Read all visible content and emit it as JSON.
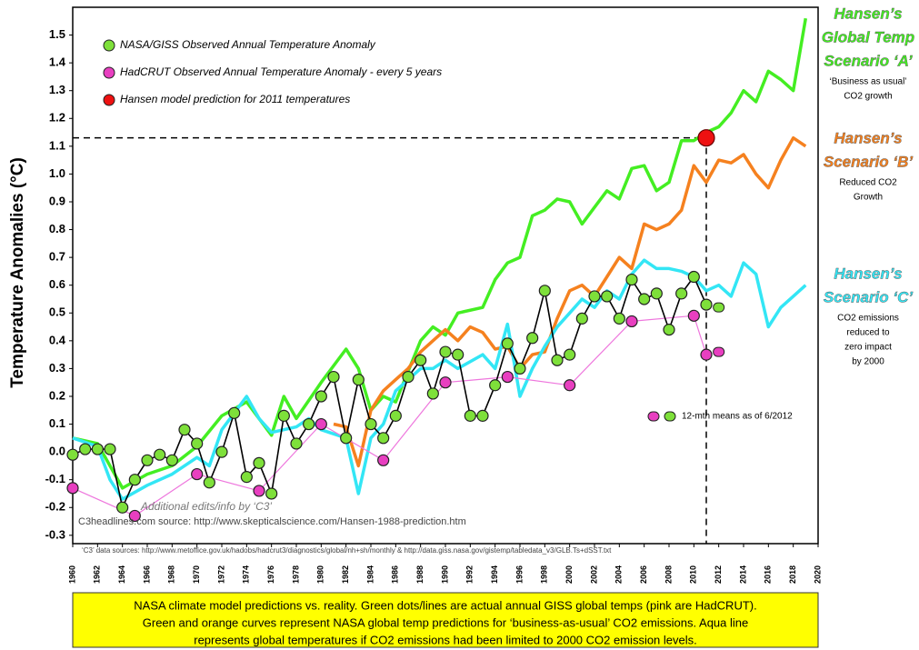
{
  "chart_data": {
    "type": "line",
    "y_label": "Temperature Anomalies (°C)",
    "xlim": [
      1960,
      2020
    ],
    "xticks": [
      1960,
      1962,
      1964,
      1966,
      1968,
      1970,
      1972,
      1974,
      1976,
      1978,
      1980,
      1982,
      1984,
      1986,
      1988,
      1990,
      1992,
      1994,
      1996,
      1998,
      2000,
      2002,
      2004,
      2006,
      2008,
      2010,
      2012,
      2014,
      2016,
      2018,
      2020
    ],
    "ylim": [
      -0.33,
      1.6
    ],
    "yticks": [
      -0.3,
      -0.2,
      -0.1,
      {
        "value": 0,
        "label": "0.0"
      },
      0.1,
      0.2,
      0.3,
      0.4,
      0.5,
      0.6,
      0.7,
      0.8,
      0.9,
      {
        "value": 1,
        "label": "1.0"
      },
      1.1,
      1.2,
      1.3,
      1.4,
      1.5
    ],
    "series": [
      {
        "label_lines": [
          "Hansen’s",
          "Global Temp",
          "Scenario ‘A’"
        ],
        "note_lines": [
          "‘Business as usual’",
          "CO2 growth"
        ],
        "color": "#44ee22",
        "marker": false,
        "x": [
          1960,
          1962,
          1964,
          1966,
          1968,
          1970,
          1972,
          1974,
          1975,
          1976,
          1977,
          1978,
          1980,
          1982,
          1983,
          1984,
          1985,
          1986,
          1988,
          1989,
          1990,
          1991,
          1993,
          1994,
          1995,
          1996,
          1997,
          1998,
          1999,
          2000,
          2001,
          2002,
          2003,
          2004,
          2005,
          2006,
          2007,
          2008,
          2009,
          2010,
          2011,
          2012,
          2013,
          2014,
          2015,
          2016,
          2017,
          2018,
          2019
        ],
        "values": [
          0.05,
          0.03,
          -0.13,
          -0.08,
          -0.05,
          0.02,
          0.13,
          0.18,
          0.12,
          0.06,
          0.2,
          0.12,
          0.25,
          0.37,
          0.3,
          0.15,
          0.2,
          0.18,
          0.4,
          0.45,
          0.42,
          0.5,
          0.52,
          0.62,
          0.68,
          0.7,
          0.85,
          0.87,
          0.91,
          0.9,
          0.82,
          0.88,
          0.94,
          0.91,
          1.02,
          1.03,
          0.94,
          0.97,
          1.12,
          1.12,
          1.15,
          1.17,
          1.22,
          1.3,
          1.26,
          1.37,
          1.34,
          1.3,
          1.56
        ]
      },
      {
        "label_lines": [
          "Hansen’s",
          "Scenario ‘B’"
        ],
        "note_lines": [
          "Reduced CO2",
          "Growth"
        ],
        "color": "#f5811f",
        "marker": false,
        "x": [
          1981,
          1982,
          1983,
          1984,
          1985,
          1986,
          1987,
          1988,
          1989,
          1990,
          1991,
          1992,
          1993,
          1994,
          1995,
          1996,
          1997,
          1998,
          1999,
          2000,
          2001,
          2002,
          2003,
          2004,
          2005,
          2006,
          2007,
          2008,
          2009,
          2010,
          2011,
          2012,
          2013,
          2014,
          2015,
          2016,
          2017,
          2018,
          2019
        ],
        "values": [
          0.1,
          0.09,
          -0.05,
          0.15,
          0.22,
          0.26,
          0.3,
          0.36,
          0.4,
          0.44,
          0.4,
          0.45,
          0.43,
          0.37,
          0.38,
          0.3,
          0.35,
          0.36,
          0.48,
          0.58,
          0.6,
          0.56,
          0.63,
          0.7,
          0.66,
          0.82,
          0.8,
          0.82,
          0.87,
          1.03,
          0.97,
          1.05,
          1.04,
          1.07,
          1.0,
          0.95,
          1.05,
          1.13,
          1.1
        ]
      },
      {
        "label_lines": [
          "Hansen’s",
          "Scenario ‘C’"
        ],
        "note_lines": [
          "CO2 emissions",
          "reduced to",
          "zero impact",
          "by 2000"
        ],
        "color": "#33e6f5",
        "marker": false,
        "x": [
          1960,
          1962,
          1963,
          1964,
          1966,
          1968,
          1970,
          1971,
          1972,
          1974,
          1975,
          1976,
          1978,
          1979,
          1980,
          1982,
          1983,
          1984,
          1985,
          1986,
          1988,
          1989,
          1990,
          1991,
          1993,
          1994,
          1995,
          1996,
          1997,
          1998,
          1999,
          2000,
          2001,
          2002,
          2003,
          2004,
          2005,
          2006,
          2007,
          2008,
          2009,
          2010,
          2011,
          2012,
          2013,
          2014,
          2015,
          2016,
          2017,
          2018,
          2019
        ],
        "values": [
          0.05,
          0.02,
          -0.1,
          -0.17,
          -0.12,
          -0.08,
          -0.02,
          -0.05,
          0.08,
          0.2,
          0.12,
          0.07,
          0.09,
          0.12,
          0.08,
          0.05,
          -0.15,
          0.05,
          0.1,
          0.22,
          0.3,
          0.3,
          0.33,
          0.3,
          0.35,
          0.3,
          0.46,
          0.2,
          0.3,
          0.38,
          0.45,
          0.5,
          0.55,
          0.52,
          0.58,
          0.55,
          0.64,
          0.69,
          0.66,
          0.66,
          0.65,
          0.63,
          0.58,
          0.6,
          0.56,
          0.68,
          0.64,
          0.45,
          0.52,
          0.56,
          0.6
        ]
      },
      {
        "name": "HadCRUT Observed Annual Temperature Anomaly - every 5 years",
        "color": "#e83fc0",
        "line_color": "#ee77dd",
        "marker": true,
        "x": [
          1960,
          1965,
          1970,
          1975,
          1980,
          1985,
          1990,
          1995,
          2000,
          2005,
          2010,
          2011
        ],
        "values": [
          -0.13,
          -0.23,
          -0.08,
          -0.14,
          0.1,
          -0.03,
          0.25,
          0.27,
          0.24,
          0.47,
          0.49,
          0.35
        ]
      },
      {
        "name": "NASA/GISS Observed Annual Temperature Anomaly",
        "color": "#7ee03a",
        "line_color": "#000000",
        "marker": true,
        "x": [
          1960,
          1961,
          1962,
          1963,
          1964,
          1965,
          1966,
          1967,
          1968,
          1969,
          1970,
          1971,
          1972,
          1973,
          1974,
          1975,
          1976,
          1977,
          1978,
          1979,
          1980,
          1981,
          1982,
          1983,
          1984,
          1985,
          1986,
          1987,
          1988,
          1989,
          1990,
          1991,
          1992,
          1993,
          1994,
          1995,
          1996,
          1997,
          1998,
          1999,
          2000,
          2001,
          2002,
          2003,
          2004,
          2005,
          2006,
          2007,
          2008,
          2009,
          2010,
          2011
        ],
        "values": [
          -0.01,
          0.01,
          0.01,
          0.01,
          -0.2,
          -0.1,
          -0.03,
          -0.01,
          -0.03,
          0.08,
          0.03,
          -0.11,
          0.0,
          0.14,
          -0.09,
          -0.04,
          -0.15,
          0.13,
          0.03,
          0.1,
          0.2,
          0.27,
          0.05,
          0.26,
          0.1,
          0.05,
          0.13,
          0.27,
          0.33,
          0.21,
          0.36,
          0.35,
          0.13,
          0.13,
          0.24,
          0.39,
          0.3,
          0.41,
          0.58,
          0.33,
          0.35,
          0.48,
          0.56,
          0.56,
          0.48,
          0.62,
          0.55,
          0.57,
          0.44,
          0.57,
          0.63,
          0.53
        ]
      }
    ],
    "prediction": {
      "name": "Hansen model prediction for 2011 temperatures",
      "color": "#ee1111",
      "x": [
        2011
      ],
      "values": [
        1.13
      ]
    },
    "twelve_month": {
      "label": "12-mth means as of 6/2012",
      "x": [
        2012,
        2012
      ],
      "values": [
        0.36,
        0.52
      ],
      "colors": [
        "#e83fc0",
        "#7ee03a"
      ]
    },
    "annotations": [
      "Additional edits/info by ‘C3’",
      "C3headlines.com source: http://www.skepticalscience.com/Hansen-1988-prediction.htm"
    ],
    "sources": "‘C3’ data sources: http://www.metoffice.gov.uk/hadobs/hadcrut3/diagnostics/global/nh+sh/monthly &  http://data.giss.nasa.gov/gistemp/tabledata_v3/GLB.Ts+dSST.txt",
    "caption_lines": [
      "NASA climate model predictions vs. reality. Green dots/lines are actual annual GISS global temps (pink are HadCRUT).",
      "Green and orange curves represent NASA global temp predictions for ‘business-as-usual’ CO2 emissions. Aqua line",
      "represents global temperatures if CO2 emissions had been limited to 2000 CO2 emission levels."
    ]
  }
}
